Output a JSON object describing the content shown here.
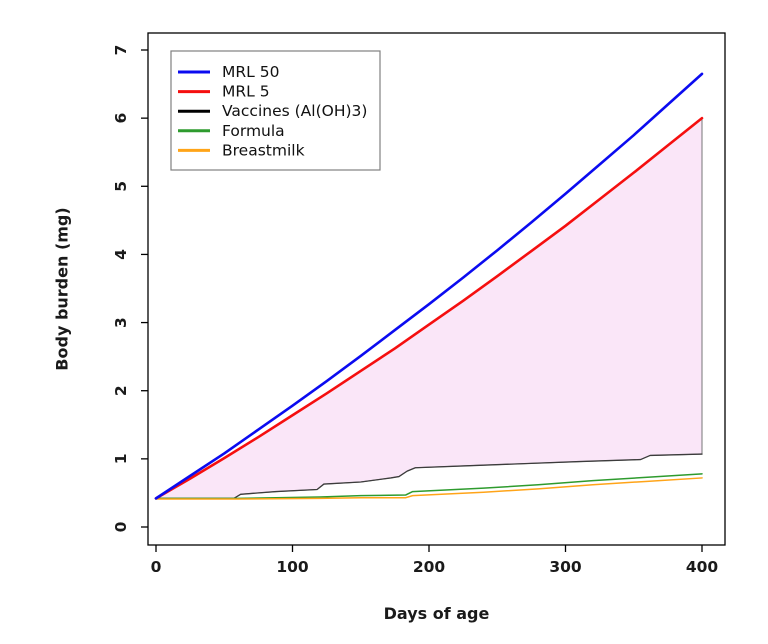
{
  "chart_data": {
    "type": "line",
    "title": "",
    "xlabel": "Days of age",
    "ylabel": "Body burden (mg)",
    "xlim": [
      0,
      400
    ],
    "ylim": [
      0,
      7
    ],
    "xticks": [
      0,
      100,
      200,
      300,
      400
    ],
    "yticks": [
      0,
      1,
      2,
      3,
      4,
      5,
      6,
      7
    ],
    "grid": false,
    "legend_position": "top-left",
    "colors": {
      "mrl50": "#0b0bf0",
      "mrl5": "#f50f0f",
      "vaccines_line": "#3c3c3c",
      "vaccines_legend": "#000000",
      "formula": "#2e9b2e",
      "breastmilk": "#ffa418",
      "shaded_fill": "#fae6f8",
      "shaded_edge": "#777777",
      "axis": "#000000"
    },
    "series": [
      {
        "name": "MRL 50",
        "color": "#0b0bf0",
        "width": 2.6,
        "x": [
          0,
          25,
          50,
          75,
          100,
          125,
          150,
          175,
          200,
          225,
          250,
          275,
          300,
          325,
          350,
          375,
          400
        ],
        "y": [
          0.42,
          0.75,
          1.08,
          1.43,
          1.78,
          2.14,
          2.51,
          2.89,
          3.27,
          3.66,
          4.06,
          4.47,
          4.89,
          5.32,
          5.75,
          6.2,
          6.65
        ]
      },
      {
        "name": "MRL 5",
        "color": "#f50f0f",
        "width": 2.6,
        "x": [
          0,
          25,
          50,
          75,
          100,
          125,
          150,
          175,
          200,
          225,
          250,
          275,
          300,
          325,
          350,
          375,
          400
        ],
        "y": [
          0.42,
          0.71,
          1.01,
          1.32,
          1.64,
          1.96,
          2.29,
          2.62,
          2.97,
          3.32,
          3.68,
          4.05,
          4.42,
          4.81,
          5.2,
          5.6,
          6.0
        ]
      },
      {
        "name": "Vaccines (Al(OH)3)",
        "color": "#3c3c3c",
        "width": 1.3,
        "x": [
          0,
          57,
          62,
          88,
          118,
          123,
          150,
          172,
          178,
          184,
          190,
          230,
          270,
          310,
          355,
          362,
          400
        ],
        "y": [
          0.42,
          0.42,
          0.48,
          0.52,
          0.55,
          0.63,
          0.66,
          0.72,
          0.74,
          0.82,
          0.87,
          0.9,
          0.93,
          0.96,
          0.99,
          1.05,
          1.07
        ]
      },
      {
        "name": "Formula",
        "color": "#2e9b2e",
        "width": 1.5,
        "x": [
          0,
          60,
          120,
          150,
          183,
          188,
          240,
          280,
          320,
          360,
          400
        ],
        "y": [
          0.42,
          0.42,
          0.44,
          0.46,
          0.47,
          0.52,
          0.57,
          0.62,
          0.68,
          0.73,
          0.78
        ]
      },
      {
        "name": "Breastmilk",
        "color": "#ffa418",
        "width": 1.5,
        "x": [
          0,
          60,
          120,
          150,
          183,
          188,
          240,
          280,
          320,
          360,
          400
        ],
        "y": [
          0.41,
          0.41,
          0.42,
          0.43,
          0.43,
          0.46,
          0.51,
          0.56,
          0.62,
          0.67,
          0.72
        ]
      }
    ],
    "shaded_region": {
      "between": [
        "MRL 5",
        "Vaccines (Al(OH)3)"
      ],
      "fill": "#fae6f8",
      "edge": "#777777"
    },
    "legend": {
      "entries": [
        "MRL 50",
        "MRL 5",
        "Vaccines (Al(OH)3)",
        "Formula",
        "Breastmilk"
      ],
      "colors": [
        "#0b0bf0",
        "#f50f0f",
        "#000000",
        "#2e9b2e",
        "#ffa418"
      ]
    }
  }
}
